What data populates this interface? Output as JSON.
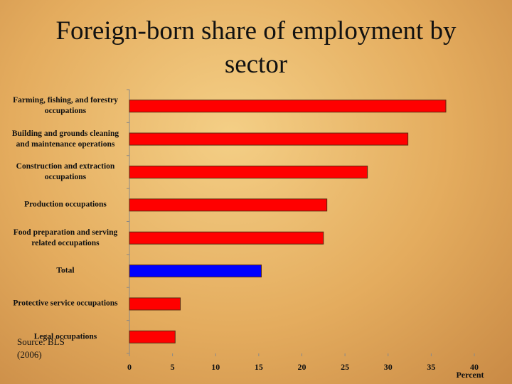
{
  "chart_data": {
    "type": "bar",
    "orientation": "horizontal",
    "title": "Foreign-born share of employment by sector",
    "categories": [
      "Farming, fishing, and forestry occupations",
      "Building and grounds cleaning and maintenance operations",
      "Construction and extraction occupations",
      "Production occupations",
      "Food preparation and serving related occupations",
      "Total",
      "Protective service occupations",
      "Legal occupations"
    ],
    "values": [
      36.7,
      32.3,
      27.6,
      22.9,
      22.5,
      15.3,
      5.9,
      5.3
    ],
    "colors": [
      "#ff0000",
      "#ff0000",
      "#ff0000",
      "#ff0000",
      "#ff0000",
      "#0000ff",
      "#ff0000",
      "#ff0000"
    ],
    "xlim": [
      0,
      40
    ],
    "xticks": [
      0,
      5,
      10,
      15,
      20,
      25,
      30,
      35,
      40
    ],
    "x_label": "Percent",
    "source": "Source: BLS (2006)"
  }
}
